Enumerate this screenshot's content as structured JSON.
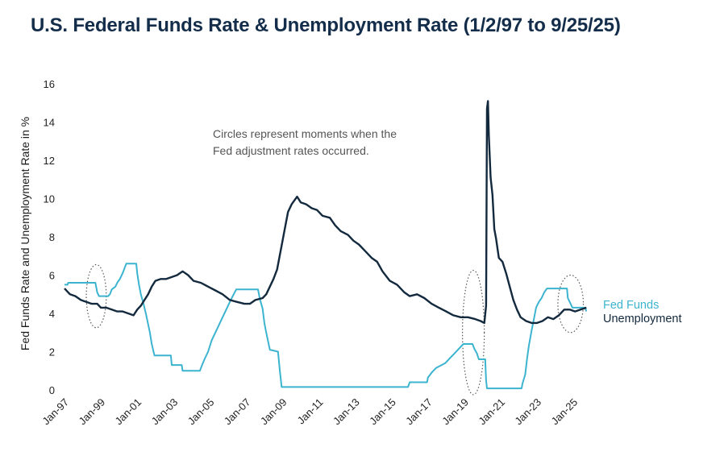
{
  "colors": {
    "fed_funds": "#3cb4d0",
    "unemployment": "#13293d",
    "title": "#132d4a",
    "circle": "#555555"
  },
  "chart_data": {
    "type": "line",
    "title": "U.S. Federal Funds Rate & Unemployment Rate (1/2/97 to 9/25/25)",
    "xlabel": "",
    "ylabel": "Fed Funds Rate and Unemployment Rate in %",
    "ylim": [
      0,
      16
    ],
    "yticks": [
      "0",
      "2",
      "4",
      "6",
      "8",
      "10",
      "12",
      "14",
      "16"
    ],
    "xlim": [
      1997.0,
      2025.75
    ],
    "xticks": [
      {
        "label": "Jan-97",
        "x": 1997
      },
      {
        "label": "Jan-99",
        "x": 1999
      },
      {
        "label": "Jan-01",
        "x": 2001
      },
      {
        "label": "Jan-03",
        "x": 2003
      },
      {
        "label": "Jan-05",
        "x": 2005
      },
      {
        "label": "Jan-07",
        "x": 2007
      },
      {
        "label": "Jan-09",
        "x": 2009
      },
      {
        "label": "Jan-11",
        "x": 2011
      },
      {
        "label": "Jan-13",
        "x": 2013
      },
      {
        "label": "Jan-15",
        "x": 2015
      },
      {
        "label": "Jan-17",
        "x": 2017
      },
      {
        "label": "Jan-19",
        "x": 2019
      },
      {
        "label": "Jan-21",
        "x": 2021
      },
      {
        "label": "Jan-23",
        "x": 2023
      },
      {
        "label": "Jan-25",
        "x": 2025
      }
    ],
    "grid": false,
    "legend": "right",
    "annotation": "Circles represent moments when the Fed adjustment rates occurred.",
    "annotation_lines": [
      "Circles represent moments when the",
      "Fed adjustment rates occurred."
    ],
    "highlight_periods": [
      {
        "x": 1998.75,
        "y": 4.9,
        "rx": 0.55,
        "ry": 1.65
      },
      {
        "x": 2019.5,
        "y": 3.0,
        "rx": 0.6,
        "ry": 3.25
      },
      {
        "x": 2024.85,
        "y": 4.5,
        "rx": 0.7,
        "ry": 1.5
      }
    ],
    "series": [
      {
        "name": "Fed Funds",
        "color": "#3cb4d0",
        "points": [
          [
            1997.0,
            5.5
          ],
          [
            1997.17,
            5.5
          ],
          [
            1997.2,
            5.6
          ],
          [
            1998.7,
            5.6
          ],
          [
            1998.8,
            5.1
          ],
          [
            1998.9,
            4.9
          ],
          [
            1999.4,
            4.9
          ],
          [
            1999.5,
            5.0
          ],
          [
            1999.6,
            5.25
          ],
          [
            1999.8,
            5.4
          ],
          [
            1999.9,
            5.6
          ],
          [
            2000.05,
            5.8
          ],
          [
            2000.2,
            6.1
          ],
          [
            2000.4,
            6.6
          ],
          [
            2000.95,
            6.6
          ],
          [
            2001.0,
            6.1
          ],
          [
            2001.1,
            5.5
          ],
          [
            2001.2,
            5.0
          ],
          [
            2001.35,
            4.5
          ],
          [
            2001.5,
            3.9
          ],
          [
            2001.7,
            3.0
          ],
          [
            2001.8,
            2.4
          ],
          [
            2001.95,
            1.8
          ],
          [
            2002.85,
            1.8
          ],
          [
            2002.9,
            1.3
          ],
          [
            2003.45,
            1.3
          ],
          [
            2003.5,
            1.0
          ],
          [
            2004.45,
            1.0
          ],
          [
            2004.55,
            1.25
          ],
          [
            2004.7,
            1.6
          ],
          [
            2004.9,
            2.0
          ],
          [
            2005.1,
            2.6
          ],
          [
            2005.3,
            3.0
          ],
          [
            2005.5,
            3.4
          ],
          [
            2005.75,
            3.9
          ],
          [
            2005.95,
            4.3
          ],
          [
            2006.2,
            4.8
          ],
          [
            2006.45,
            5.25
          ],
          [
            2007.65,
            5.25
          ],
          [
            2007.75,
            4.75
          ],
          [
            2007.9,
            4.25
          ],
          [
            2008.0,
            3.5
          ],
          [
            2008.1,
            3.0
          ],
          [
            2008.3,
            2.1
          ],
          [
            2008.75,
            2.0
          ],
          [
            2008.85,
            1.0
          ],
          [
            2008.95,
            0.15
          ],
          [
            2015.9,
            0.15
          ],
          [
            2016.0,
            0.4
          ],
          [
            2016.95,
            0.4
          ],
          [
            2017.0,
            0.65
          ],
          [
            2017.2,
            0.9
          ],
          [
            2017.45,
            1.15
          ],
          [
            2017.95,
            1.4
          ],
          [
            2018.2,
            1.65
          ],
          [
            2018.45,
            1.9
          ],
          [
            2018.7,
            2.15
          ],
          [
            2018.95,
            2.4
          ],
          [
            2019.45,
            2.4
          ],
          [
            2019.55,
            2.15
          ],
          [
            2019.7,
            1.9
          ],
          [
            2019.8,
            1.6
          ],
          [
            2020.15,
            1.6
          ],
          [
            2020.2,
            0.5
          ],
          [
            2020.25,
            0.08
          ],
          [
            2022.15,
            0.08
          ],
          [
            2022.2,
            0.33
          ],
          [
            2022.35,
            0.8
          ],
          [
            2022.45,
            1.6
          ],
          [
            2022.55,
            2.3
          ],
          [
            2022.7,
            3.1
          ],
          [
            2022.85,
            3.8
          ],
          [
            2022.95,
            4.3
          ],
          [
            2023.1,
            4.6
          ],
          [
            2023.25,
            4.8
          ],
          [
            2023.4,
            5.1
          ],
          [
            2023.55,
            5.3
          ],
          [
            2024.65,
            5.3
          ],
          [
            2024.7,
            4.8
          ],
          [
            2024.8,
            4.6
          ],
          [
            2024.95,
            4.3
          ],
          [
            2025.65,
            4.3
          ],
          [
            2025.72,
            4.1
          ]
        ]
      },
      {
        "name": "Unemployment",
        "color": "#13293d",
        "points": [
          [
            1997.0,
            5.3
          ],
          [
            1997.3,
            5.0
          ],
          [
            1997.6,
            4.9
          ],
          [
            1997.9,
            4.7
          ],
          [
            1998.2,
            4.6
          ],
          [
            1998.5,
            4.5
          ],
          [
            1998.8,
            4.5
          ],
          [
            1999.0,
            4.3
          ],
          [
            1999.3,
            4.3
          ],
          [
            1999.6,
            4.2
          ],
          [
            1999.9,
            4.1
          ],
          [
            2000.2,
            4.1
          ],
          [
            2000.5,
            4.0
          ],
          [
            2000.8,
            3.9
          ],
          [
            2001.0,
            4.2
          ],
          [
            2001.2,
            4.4
          ],
          [
            2001.4,
            4.7
          ],
          [
            2001.6,
            5.0
          ],
          [
            2001.8,
            5.4
          ],
          [
            2002.0,
            5.7
          ],
          [
            2002.3,
            5.8
          ],
          [
            2002.6,
            5.8
          ],
          [
            2002.9,
            5.9
          ],
          [
            2003.2,
            6.0
          ],
          [
            2003.5,
            6.2
          ],
          [
            2003.8,
            6.0
          ],
          [
            2004.1,
            5.7
          ],
          [
            2004.5,
            5.6
          ],
          [
            2004.9,
            5.4
          ],
          [
            2005.3,
            5.2
          ],
          [
            2005.7,
            5.0
          ],
          [
            2006.1,
            4.7
          ],
          [
            2006.5,
            4.6
          ],
          [
            2006.9,
            4.5
          ],
          [
            2007.2,
            4.5
          ],
          [
            2007.5,
            4.7
          ],
          [
            2007.9,
            4.8
          ],
          [
            2008.1,
            5.0
          ],
          [
            2008.3,
            5.4
          ],
          [
            2008.5,
            5.8
          ],
          [
            2008.7,
            6.3
          ],
          [
            2008.9,
            7.3
          ],
          [
            2009.1,
            8.3
          ],
          [
            2009.3,
            9.3
          ],
          [
            2009.5,
            9.7
          ],
          [
            2009.8,
            10.1
          ],
          [
            2010.0,
            9.8
          ],
          [
            2010.3,
            9.7
          ],
          [
            2010.6,
            9.5
          ],
          [
            2010.9,
            9.4
          ],
          [
            2011.2,
            9.1
          ],
          [
            2011.6,
            9.0
          ],
          [
            2011.9,
            8.6
          ],
          [
            2012.2,
            8.3
          ],
          [
            2012.6,
            8.1
          ],
          [
            2012.9,
            7.8
          ],
          [
            2013.2,
            7.6
          ],
          [
            2013.5,
            7.3
          ],
          [
            2013.9,
            6.9
          ],
          [
            2014.2,
            6.7
          ],
          [
            2014.5,
            6.2
          ],
          [
            2014.9,
            5.7
          ],
          [
            2015.3,
            5.5
          ],
          [
            2015.7,
            5.1
          ],
          [
            2016.0,
            4.9
          ],
          [
            2016.4,
            5.0
          ],
          [
            2016.8,
            4.8
          ],
          [
            2017.2,
            4.5
          ],
          [
            2017.6,
            4.3
          ],
          [
            2018.0,
            4.1
          ],
          [
            2018.4,
            3.9
          ],
          [
            2018.8,
            3.8
          ],
          [
            2019.2,
            3.8
          ],
          [
            2019.6,
            3.7
          ],
          [
            2019.9,
            3.6
          ],
          [
            2020.1,
            3.5
          ],
          [
            2020.2,
            4.4
          ],
          [
            2020.25,
            14.7
          ],
          [
            2020.3,
            15.1
          ],
          [
            2020.35,
            13.3
          ],
          [
            2020.45,
            11.1
          ],
          [
            2020.55,
            10.2
          ],
          [
            2020.65,
            8.4
          ],
          [
            2020.75,
            7.9
          ],
          [
            2020.9,
            6.9
          ],
          [
            2021.1,
            6.7
          ],
          [
            2021.3,
            6.1
          ],
          [
            2021.5,
            5.4
          ],
          [
            2021.7,
            4.7
          ],
          [
            2021.9,
            4.2
          ],
          [
            2022.1,
            3.8
          ],
          [
            2022.4,
            3.6
          ],
          [
            2022.7,
            3.5
          ],
          [
            2023.0,
            3.5
          ],
          [
            2023.3,
            3.6
          ],
          [
            2023.6,
            3.8
          ],
          [
            2023.9,
            3.7
          ],
          [
            2024.2,
            3.9
          ],
          [
            2024.5,
            4.2
          ],
          [
            2024.8,
            4.2
          ],
          [
            2025.1,
            4.1
          ],
          [
            2025.4,
            4.2
          ],
          [
            2025.72,
            4.3
          ]
        ]
      }
    ]
  }
}
